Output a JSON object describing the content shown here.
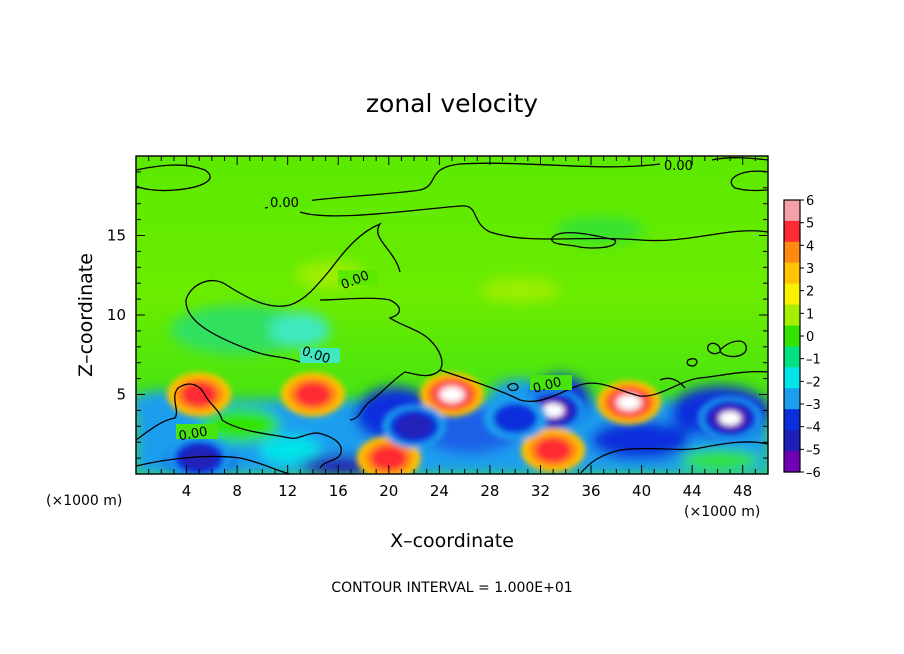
{
  "chart_data": {
    "type": "heatmap",
    "title": "zonal velocity",
    "xlabel": "X–coordinate",
    "ylabel": "Z–coordinate",
    "x_units": "(×1000 m)",
    "z_units": "(×1000 m)",
    "xlim": [
      0,
      50
    ],
    "ylim": [
      0,
      20
    ],
    "x_ticks": [
      "4",
      "8",
      "12",
      "16",
      "20",
      "24",
      "28",
      "32",
      "36",
      "40",
      "44",
      "48"
    ],
    "y_ticks": [
      "5",
      "10",
      "15"
    ],
    "colorbar": {
      "labels": [
        "6",
        "5",
        "4",
        "3",
        "2",
        "1",
        "0",
        "–1",
        "–2",
        "–3",
        "–4",
        "–5",
        "–6"
      ],
      "range": [
        -6,
        6
      ],
      "colors": [
        "#f4a0a8",
        "#ff2a32",
        "#ff8a10",
        "#ffc400",
        "#f6f200",
        "#a6ee00",
        "#32e400",
        "#00e082",
        "#00e4e8",
        "#1c9eee",
        "#0a2edc",
        "#2020b8",
        "#7000b4"
      ]
    },
    "contour_label": "0.00",
    "contour_interval_text": "CONTOUR INTERVAL = 1.000E+01",
    "features": [
      {
        "x": 5,
        "z": 5,
        "value": 5
      },
      {
        "x": 14,
        "z": 5,
        "value": 5
      },
      {
        "x": 25,
        "z": 5,
        "value": 6
      },
      {
        "x": 33,
        "z": 4,
        "value": -6
      },
      {
        "x": 39,
        "z": 4.5,
        "value": 6
      },
      {
        "x": 47,
        "z": 3.5,
        "value": -6
      },
      {
        "x": 20,
        "z": 1,
        "value": 5
      },
      {
        "x": 33,
        "z": 1.5,
        "value": 5
      },
      {
        "x": 5,
        "z": 1,
        "value": -5
      },
      {
        "x": 22,
        "z": 3,
        "value": -5
      },
      {
        "x": 30,
        "z": 3.5,
        "value": -4
      }
    ]
  }
}
